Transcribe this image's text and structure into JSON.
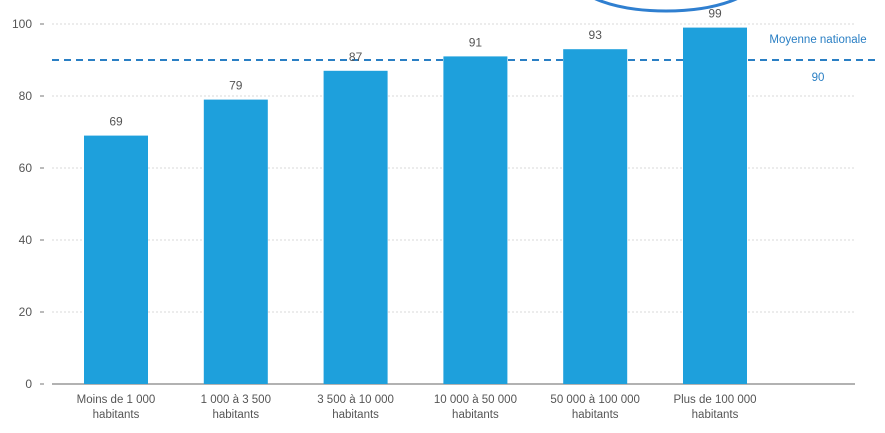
{
  "chart_data": {
    "type": "bar",
    "categories": [
      [
        "Moins de 1 000",
        "habitants"
      ],
      [
        "1 000 à 3 500",
        "habitants"
      ],
      [
        "3 500 à 10 000",
        "habitants"
      ],
      [
        "10 000 à 50 000",
        "habitants"
      ],
      [
        "50 000 à 100 000",
        "habitants"
      ],
      [
        "Plus de 100 000",
        "habitants"
      ]
    ],
    "values": [
      69,
      79,
      87,
      91,
      93,
      99
    ],
    "data_labels": [
      "69",
      "79",
      "87",
      "91",
      "93",
      "99"
    ],
    "ylim": [
      0,
      100
    ],
    "yticks": [
      0,
      20,
      40,
      60,
      80,
      100
    ],
    "grid": true,
    "reference_line": {
      "label": "Moyenne nationale",
      "value": 90,
      "value_label": "90"
    },
    "colors": {
      "bar": "#1ea0dc",
      "reference_line": "#2a7fc4",
      "reference_text": "#2a7fc4",
      "oval_outline": "#2f7fd0"
    },
    "title": "",
    "xlabel": "",
    "ylabel": ""
  }
}
